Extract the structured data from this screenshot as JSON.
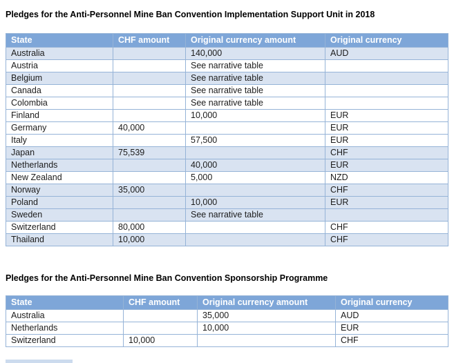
{
  "colors": {
    "header_bg": "#7ea6d8",
    "band_bg": "#d9e3f1",
    "border": "#95b3d7",
    "header_text": "#ffffff",
    "body_text": "#1c1c1c",
    "page_bg": "#ffffff"
  },
  "tables": [
    {
      "title": "Pledges for the Anti-Personnel Mine Ban Convention Implementation Support Unit in 2018",
      "columns": [
        "State",
        "CHF amount",
        "Original currency amount",
        "Original currency"
      ],
      "rows": [
        {
          "cells": [
            "Australia",
            "",
            "140,000",
            "AUD"
          ],
          "shaded": true
        },
        {
          "cells": [
            "Austria",
            "",
            "See narrative table",
            ""
          ],
          "shaded": false
        },
        {
          "cells": [
            "Belgium",
            "",
            "See narrative table",
            ""
          ],
          "shaded": true
        },
        {
          "cells": [
            "Canada",
            "",
            "See narrative table",
            ""
          ],
          "shaded": false
        },
        {
          "cells": [
            "Colombia",
            "",
            "See narrative table",
            ""
          ],
          "shaded": false
        },
        {
          "cells": [
            "Finland",
            "",
            "10,000",
            "EUR"
          ],
          "shaded": false
        },
        {
          "cells": [
            "Germany",
            "40,000",
            "",
            "EUR"
          ],
          "shaded": false
        },
        {
          "cells": [
            "Italy",
            "",
            "57,500",
            "EUR"
          ],
          "shaded": false
        },
        {
          "cells": [
            "Japan",
            "75,539",
            "",
            "CHF"
          ],
          "shaded": true
        },
        {
          "cells": [
            "Netherlands",
            "",
            "40,000",
            "EUR"
          ],
          "shaded": true
        },
        {
          "cells": [
            "New Zealand",
            "",
            "5,000",
            "NZD"
          ],
          "shaded": false
        },
        {
          "cells": [
            "Norway",
            "35,000",
            "",
            "CHF"
          ],
          "shaded": true
        },
        {
          "cells": [
            "Poland",
            "",
            "10,000",
            "EUR"
          ],
          "shaded": true
        },
        {
          "cells": [
            "Sweden",
            "",
            "See narrative table",
            ""
          ],
          "shaded": true
        },
        {
          "cells": [
            "Switzerland",
            "80,000",
            "",
            "CHF"
          ],
          "shaded": false
        },
        {
          "cells": [
            "Thailand",
            "10,000",
            "",
            "CHF"
          ],
          "shaded": true
        }
      ]
    },
    {
      "title": "Pledges for the Anti-Personnel Mine Ban Convention Sponsorship Programme",
      "columns": [
        "State",
        "CHF amount",
        "Original currency amount",
        "Original currency"
      ],
      "rows": [
        {
          "cells": [
            "Australia",
            "",
            "35,000",
            "AUD"
          ],
          "shaded": false
        },
        {
          "cells": [
            "Netherlands",
            "",
            "10,000",
            "EUR"
          ],
          "shaded": false
        },
        {
          "cells": [
            "Switzerland",
            "10,000",
            "",
            "CHF"
          ],
          "shaded": false
        }
      ]
    }
  ]
}
